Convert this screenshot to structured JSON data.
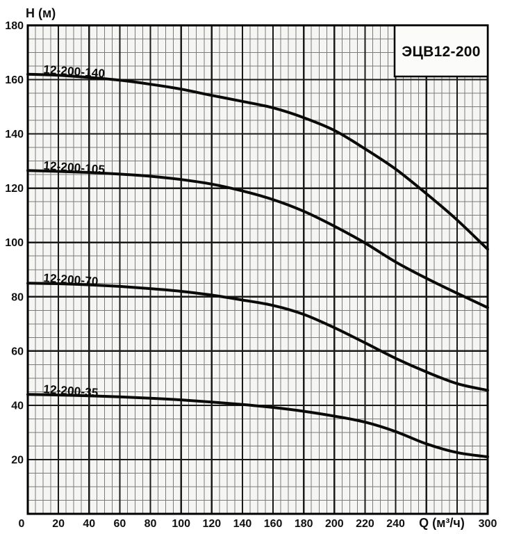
{
  "chart_data": {
    "type": "line",
    "title": "ЭЦВ12-200",
    "xlabel": "Q (м³/ч)",
    "ylabel": "H (м)",
    "xlim": [
      0,
      300
    ],
    "ylim": [
      0,
      180
    ],
    "x_major_step": 20,
    "y_major_step": 20,
    "x_minor_step": 5,
    "y_minor_step": 5,
    "grid": "major+minor",
    "legend_position": "labels-on-curves",
    "x_tick_labels": [
      {
        "v": 0,
        "t": "0"
      },
      {
        "v": 20,
        "t": "20"
      },
      {
        "v": 40,
        "t": "40"
      },
      {
        "v": 60,
        "t": "60"
      },
      {
        "v": 80,
        "t": "80"
      },
      {
        "v": 100,
        "t": "100"
      },
      {
        "v": 120,
        "t": "120"
      },
      {
        "v": 140,
        "t": "140"
      },
      {
        "v": 160,
        "t": "160"
      },
      {
        "v": 180,
        "t": "180"
      },
      {
        "v": 200,
        "t": "200"
      },
      {
        "v": 220,
        "t": "220"
      },
      {
        "v": 240,
        "t": "240"
      },
      {
        "v": 260,
        "t": ""
      },
      {
        "v": 280,
        "t": ""
      },
      {
        "v": 300,
        "t": "300"
      }
    ],
    "y_tick_labels": [
      {
        "v": 20,
        "t": "20"
      },
      {
        "v": 40,
        "t": "40"
      },
      {
        "v": 60,
        "t": "60"
      },
      {
        "v": 80,
        "t": "80"
      },
      {
        "v": 100,
        "t": "100"
      },
      {
        "v": 120,
        "t": "120"
      },
      {
        "v": 140,
        "t": "140"
      },
      {
        "v": 160,
        "t": "160"
      },
      {
        "v": 180,
        "t": "180"
      }
    ],
    "x": [
      0,
      20,
      40,
      60,
      80,
      100,
      120,
      140,
      160,
      180,
      200,
      220,
      240,
      260,
      280,
      300
    ],
    "series": [
      {
        "name": "12-200-140",
        "values": [
          162,
          161.6,
          160.8,
          159.8,
          158.3,
          156.5,
          154.2,
          152,
          149.6,
          146,
          141.3,
          134.5,
          127,
          118,
          108.3,
          97.5
        ]
      },
      {
        "name": "12-200-105",
        "values": [
          126.5,
          126.2,
          125.8,
          125.2,
          124.4,
          123.2,
          121.5,
          119,
          115.8,
          111.5,
          106,
          99.8,
          92.8,
          86.8,
          81.3,
          76
        ]
      },
      {
        "name": "12-200-70",
        "values": [
          85,
          84.8,
          84.4,
          83.8,
          83,
          82,
          80.6,
          78.8,
          76.8,
          73.5,
          68.6,
          63,
          57.3,
          52.3,
          48,
          45.5
        ]
      },
      {
        "name": "12-200-35",
        "values": [
          44,
          43.8,
          43.5,
          43.1,
          42.6,
          42,
          41.2,
          40.3,
          39.2,
          37.8,
          36,
          33.8,
          30.3,
          25.8,
          22.6,
          21
        ]
      }
    ],
    "colors": {
      "curve": "#0a0a0a",
      "grid_major": "#1a1a1a",
      "grid_minor": "#7a7a7a",
      "frame": "#000000",
      "paper": "#f5f5f3",
      "title_box_fill": "#fbfbfa"
    }
  }
}
